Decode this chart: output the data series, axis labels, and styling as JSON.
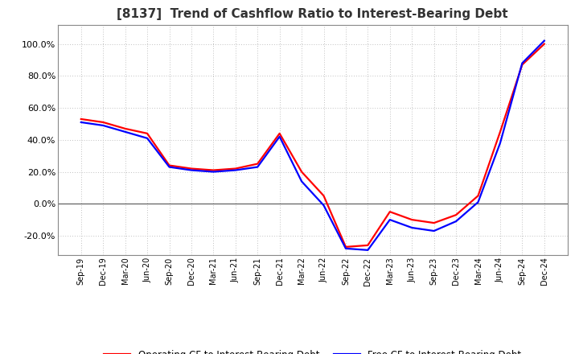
{
  "title": "[8137]  Trend of Cashflow Ratio to Interest-Bearing Debt",
  "title_fontsize": 11,
  "x_labels": [
    "Sep-19",
    "Dec-19",
    "Mar-20",
    "Jun-20",
    "Sep-20",
    "Dec-20",
    "Mar-21",
    "Jun-21",
    "Sep-21",
    "Dec-21",
    "Mar-22",
    "Jun-22",
    "Sep-22",
    "Dec-22",
    "Mar-23",
    "Jun-23",
    "Sep-23",
    "Dec-23",
    "Mar-24",
    "Jun-24",
    "Sep-24",
    "Dec-24"
  ],
  "operating_cf": [
    0.53,
    0.51,
    0.47,
    0.44,
    0.24,
    0.22,
    0.21,
    0.22,
    0.25,
    0.44,
    0.2,
    0.05,
    -0.27,
    -0.26,
    -0.05,
    -0.1,
    -0.12,
    -0.07,
    0.05,
    0.45,
    0.87,
    1.0
  ],
  "free_cf": [
    0.51,
    0.49,
    0.45,
    0.41,
    0.23,
    0.21,
    0.2,
    0.21,
    0.23,
    0.42,
    0.14,
    -0.01,
    -0.28,
    -0.29,
    -0.1,
    -0.15,
    -0.17,
    -0.11,
    0.01,
    0.38,
    0.88,
    1.02
  ],
  "operating_color": "#ff0000",
  "free_color": "#0000ff",
  "ylim": [
    -0.32,
    1.12
  ],
  "yticks": [
    -0.2,
    0.0,
    0.2,
    0.4,
    0.6,
    0.8,
    1.0
  ],
  "grid_color": "#c0c0c0",
  "background_color": "#ffffff",
  "legend_op": "Operating CF to Interest-Bearing Debt",
  "legend_free": "Free CF to Interest-Bearing Debt",
  "line_width": 1.6
}
